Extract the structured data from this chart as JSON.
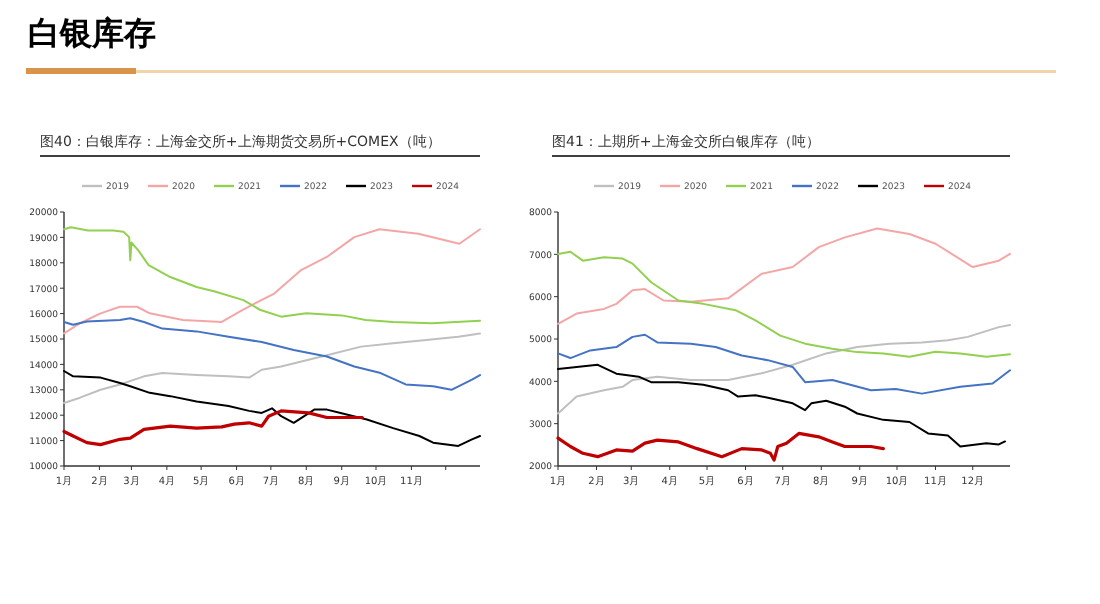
{
  "chart_data": [
    {
      "type": "line",
      "title": "白银库存",
      "subtitle": "图40：白银库存：上海金交所+上海期货交易所+COMEX（吨）",
      "legend": "top",
      "grid": false,
      "line_style": "solid",
      "xlim": [
        "--01-01",
        "--12-31"
      ],
      "xticks": [
        {
          "value": "--01-01",
          "label": "1月"
        },
        {
          "value": "--02-01",
          "label": "2月"
        },
        {
          "value": "--03-01",
          "label": "3月"
        },
        {
          "value": "--04-01",
          "label": "4月"
        },
        {
          "value": "--05-01",
          "label": "5月"
        },
        {
          "value": "--06-01",
          "label": "6月"
        },
        {
          "value": "--07-01",
          "label": "7月"
        },
        {
          "value": "--08-01",
          "label": "8月"
        },
        {
          "value": "--09-01",
          "label": "9月"
        },
        {
          "value": "--10-01",
          "label": "10月"
        },
        {
          "value": "--11-01",
          "label": "11月"
        },
        {
          "value": "--12-01",
          "label": null
        }
      ],
      "ylim": [
        10000,
        20000
      ],
      "yticks": [
        10000,
        11000,
        12000,
        13000,
        14000,
        15000,
        16000,
        17000,
        18000,
        19000,
        20000
      ],
      "series": [
        {
          "name": "2019",
          "color": "#bfbfbf",
          "x": [
            "--01-01",
            "--01-15",
            "--02-02",
            "--02-19",
            "--03-12",
            "--03-28",
            "--04-27",
            "--05-25",
            "--06-12",
            "--06-23",
            "--07-10",
            "--08-03",
            "--08-19",
            "--09-18",
            "--10-16",
            "--11-14",
            "--12-12",
            "--12-31"
          ],
          "values": [
            12480,
            12690,
            13000,
            13210,
            13530,
            13660,
            13580,
            13530,
            13480,
            13790,
            13920,
            14180,
            14360,
            14700,
            14830,
            14960,
            15090,
            15220
          ]
        },
        {
          "name": "2020",
          "color": "#f4a6a6",
          "x": [
            "--01-01",
            "--01-15",
            "--02-02",
            "--02-19",
            "--03-06",
            "--03-17",
            "--04-15",
            "--05-19",
            "--06-06",
            "--07-04",
            "--07-27",
            "--08-19",
            "--09-12",
            "--10-04",
            "--11-07",
            "--12-13",
            "--12-31"
          ],
          "values": [
            15220,
            15620,
            16010,
            16270,
            16270,
            16010,
            15750,
            15670,
            16140,
            16790,
            17700,
            18230,
            19010,
            19320,
            19140,
            18750,
            19320
          ]
        },
        {
          "name": "2021",
          "color": "#92d050",
          "x": [
            "--01-01",
            "--01-07",
            "--01-22",
            "--02-13",
            "--02-22",
            "--02-27",
            "--02-28",
            "--03-01",
            "--03-07",
            "--03-16",
            "--04-04",
            "--04-27",
            "--05-13",
            "--06-07",
            "--06-22",
            "--07-10",
            "--08-01",
            "--09-01",
            "--09-22",
            "--10-16",
            "--11-19",
            "--12-31"
          ],
          "values": [
            19320,
            19400,
            19270,
            19270,
            19220,
            19010,
            18100,
            18800,
            18490,
            17910,
            17440,
            17050,
            16870,
            16530,
            16140,
            15880,
            16010,
            15930,
            15750,
            15670,
            15620,
            15720
          ]
        },
        {
          "name": "2022",
          "color": "#4472c4",
          "x": [
            "--01-01",
            "--01-09",
            "--01-21",
            "--02-19",
            "--02-28",
            "--03-12",
            "--03-28",
            "--04-27",
            "--05-25",
            "--06-23",
            "--07-21",
            "--08-19",
            "--09-12",
            "--10-05",
            "--10-27",
            "--11-20",
            "--12-06",
            "--12-24",
            "--12-31"
          ],
          "values": [
            15670,
            15560,
            15690,
            15750,
            15820,
            15670,
            15410,
            15300,
            15090,
            14880,
            14570,
            14310,
            13920,
            13660,
            13210,
            13140,
            13000,
            13400,
            13580
          ]
        },
        {
          "name": "2023",
          "color": "#000000",
          "x": [
            "--01-01",
            "--01-09",
            "--02-02",
            "--02-19",
            "--02-28",
            "--03-17",
            "--04-04",
            "--04-27",
            "--05-25",
            "--06-12",
            "--06-23",
            "--07-02",
            "--07-10",
            "--07-21",
            "--08-08",
            "--08-19",
            "--08-31",
            "--09-23",
            "--10-16",
            "--11-08",
            "--11-20",
            "--12-12",
            "--12-24",
            "--12-31"
          ],
          "values": [
            13740,
            13530,
            13480,
            13270,
            13140,
            12880,
            12750,
            12540,
            12360,
            12170,
            12090,
            12270,
            11960,
            11700,
            12220,
            12220,
            12090,
            11830,
            11490,
            11180,
            10920,
            10790,
            11050,
            11180
          ]
        },
        {
          "name": "2024",
          "color": "#c00000",
          "x": [
            "--01-01",
            "--01-09",
            "--01-21",
            "--02-02",
            "--02-19",
            "--02-28",
            "--03-12",
            "--04-04",
            "--04-27",
            "--05-19",
            "--05-30",
            "--06-12",
            "--06-23",
            "--06-29",
            "--07-10",
            "--08-03",
            "--08-19",
            "--09-12",
            "--09-19"
          ],
          "values": [
            11360,
            11180,
            10920,
            10840,
            11050,
            11100,
            11440,
            11570,
            11490,
            11540,
            11650,
            11700,
            11570,
            11960,
            12170,
            12090,
            11910,
            11910,
            11910
          ]
        }
      ]
    },
    {
      "type": "line",
      "title": "图41：上期所+上海金交所白银库存（吨）",
      "legend": "top",
      "grid": false,
      "line_style": "solid",
      "xlim": [
        "--01-01",
        "--12-31"
      ],
      "xticks": [
        {
          "value": "--01-01",
          "label": "1月"
        },
        {
          "value": "--02-01",
          "label": "2月"
        },
        {
          "value": "--03-01",
          "label": "3月"
        },
        {
          "value": "--04-01",
          "label": "4月"
        },
        {
          "value": "--05-01",
          "label": "5月"
        },
        {
          "value": "--06-01",
          "label": "6月"
        },
        {
          "value": "--07-01",
          "label": "7月"
        },
        {
          "value": "--08-01",
          "label": "8月"
        },
        {
          "value": "--09-01",
          "label": "9月"
        },
        {
          "value": "--10-01",
          "label": "10月"
        },
        {
          "value": "--11-01",
          "label": "11月"
        },
        {
          "value": "--12-01",
          "label": "12月"
        }
      ],
      "ylim": [
        2000,
        8000
      ],
      "yticks": [
        2000,
        3000,
        4000,
        5000,
        6000,
        7000,
        8000
      ],
      "series": [
        {
          "name": "2019",
          "color": "#bfbfbf",
          "x": [
            "--01-01",
            "--01-16",
            "--02-07",
            "--02-22",
            "--03-02",
            "--03-22",
            "--04-18",
            "--05-18",
            "--06-14",
            "--07-09",
            "--08-05",
            "--08-30",
            "--09-25",
            "--10-21",
            "--11-11",
            "--11-27",
            "--12-22",
            "--12-31"
          ],
          "values": [
            3240,
            3640,
            3790,
            3870,
            4030,
            4110,
            4030,
            4030,
            4190,
            4390,
            4660,
            4810,
            4890,
            4920,
            4970,
            5050,
            5280,
            5330
          ]
        },
        {
          "name": "2020",
          "color": "#f4a6a6",
          "x": [
            "--01-01",
            "--01-16",
            "--02-07",
            "--02-17",
            "--03-02",
            "--03-12",
            "--03-27",
            "--04-18",
            "--05-18",
            "--06-14",
            "--07-09",
            "--07-30",
            "--08-20",
            "--09-15",
            "--10-11",
            "--11-01",
            "--12-01",
            "--12-22",
            "--12-31"
          ],
          "values": [
            5360,
            5600,
            5710,
            5830,
            6150,
            6180,
            5910,
            5880,
            5960,
            6540,
            6700,
            7170,
            7400,
            7610,
            7480,
            7250,
            6700,
            6850,
            7010
          ]
        },
        {
          "name": "2021",
          "color": "#92d050",
          "x": [
            "--01-01",
            "--01-11",
            "--01-21",
            "--02-07",
            "--02-22",
            "--03-02",
            "--03-17",
            "--04-08",
            "--04-28",
            "--05-24",
            "--06-09",
            "--06-29",
            "--07-19",
            "--08-10",
            "--08-30",
            "--09-20",
            "--10-11",
            "--11-01",
            "--11-21",
            "--12-12",
            "--12-31"
          ],
          "values": [
            7010,
            7060,
            6850,
            6930,
            6900,
            6780,
            6340,
            5910,
            5830,
            5680,
            5440,
            5080,
            4890,
            4770,
            4690,
            4660,
            4580,
            4700,
            4660,
            4580,
            4640
          ]
        },
        {
          "name": "2022",
          "color": "#4472c4",
          "x": [
            "--01-01",
            "--01-11",
            "--01-27",
            "--02-17",
            "--03-02",
            "--03-12",
            "--03-22",
            "--04-18",
            "--05-08",
            "--05-29",
            "--06-19",
            "--07-09",
            "--07-19",
            "--08-10",
            "--09-10",
            "--09-30",
            "--10-21",
            "--11-21",
            "--12-17",
            "--12-31"
          ],
          "values": [
            4660,
            4550,
            4730,
            4810,
            5050,
            5100,
            4920,
            4890,
            4810,
            4610,
            4500,
            4340,
            3980,
            4030,
            3790,
            3820,
            3710,
            3870,
            3950,
            4260
          ]
        },
        {
          "name": "2023",
          "color": "#000000",
          "x": [
            "--01-01",
            "--01-16",
            "--02-02",
            "--02-17",
            "--03-07",
            "--03-17",
            "--04-08",
            "--04-28",
            "--05-18",
            "--05-26",
            "--06-09",
            "--06-21",
            "--07-09",
            "--07-19",
            "--07-24",
            "--08-05",
            "--08-20",
            "--08-30",
            "--09-20",
            "--10-11",
            "--10-26",
            "--11-11",
            "--11-21",
            "--12-12",
            "--12-22",
            "--12-27"
          ],
          "values": [
            4290,
            4340,
            4390,
            4180,
            4110,
            3980,
            3980,
            3920,
            3790,
            3640,
            3670,
            3600,
            3480,
            3320,
            3480,
            3540,
            3400,
            3240,
            3090,
            3040,
            2770,
            2720,
            2460,
            2540,
            2510,
            2580
          ]
        },
        {
          "name": "2024",
          "color": "#c00000",
          "x": [
            "--01-01",
            "--01-11",
            "--01-21",
            "--02-02",
            "--02-17",
            "--03-02",
            "--03-12",
            "--03-22",
            "--04-08",
            "--04-23",
            "--05-13",
            "--05-29",
            "--06-14",
            "--06-21",
            "--06-24",
            "--06-27",
            "--07-04",
            "--07-14",
            "--07-30",
            "--08-10",
            "--08-20",
            "--09-10",
            "--09-20"
          ],
          "values": [
            2660,
            2460,
            2300,
            2220,
            2380,
            2350,
            2540,
            2610,
            2570,
            2410,
            2220,
            2410,
            2380,
            2300,
            2140,
            2460,
            2540,
            2770,
            2690,
            2570,
            2460,
            2460,
            2410
          ]
        }
      ]
    }
  ]
}
